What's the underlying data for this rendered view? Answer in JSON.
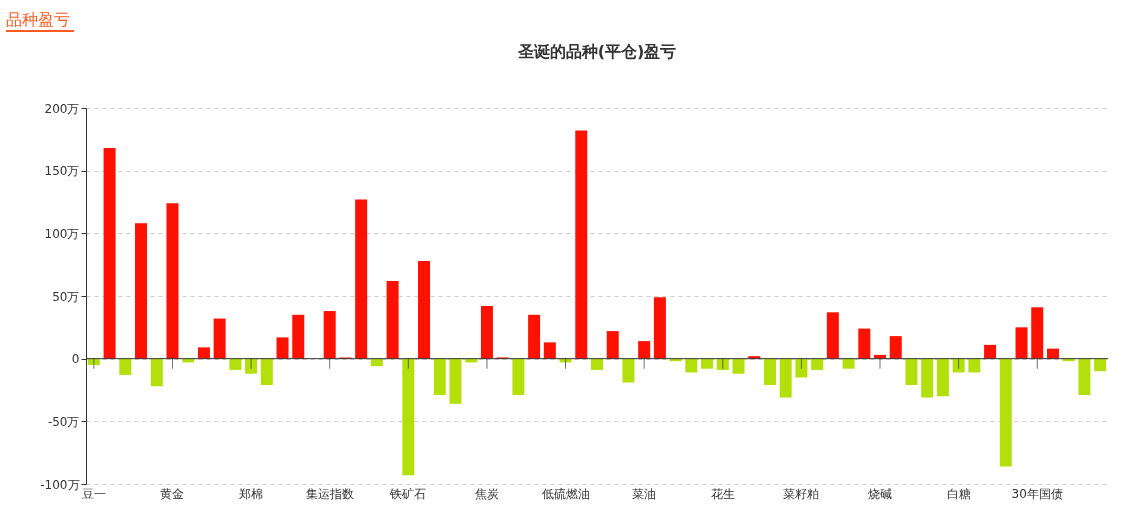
{
  "chart_data": {
    "type": "bar",
    "title": "圣诞的品种(平仓)盈亏",
    "annotations": [
      "品种盈亏"
    ],
    "categories": [
      "豆一",
      null,
      null,
      null,
      null,
      "黄金",
      null,
      null,
      null,
      null,
      "郑棉",
      null,
      null,
      null,
      null,
      "集运指数",
      null,
      null,
      null,
      null,
      "铁矿石",
      null,
      null,
      null,
      null,
      "焦炭",
      null,
      null,
      null,
      null,
      "低硫燃油",
      null,
      null,
      null,
      null,
      "菜油",
      null,
      null,
      null,
      null,
      "花生",
      null,
      null,
      null,
      null,
      "菜籽粕",
      null,
      null,
      null,
      null,
      "烧碱",
      null,
      null,
      null,
      null,
      "白糖",
      null,
      null,
      null,
      null,
      "30年国债",
      null,
      null,
      null,
      null
    ],
    "values": [
      -5,
      168,
      -13,
      108,
      -22,
      124,
      -3,
      9,
      32,
      -9,
      -12,
      -21,
      17,
      35,
      0,
      38,
      1,
      127,
      -6,
      62,
      -93,
      78,
      -29,
      -36,
      -3,
      42,
      1,
      -29,
      35,
      13,
      -3,
      182,
      -9,
      22,
      -19,
      14,
      49,
      -2,
      -11,
      -8,
      -9,
      -12,
      2,
      -21,
      -31,
      -15,
      -9,
      37,
      -8,
      24,
      3,
      18,
      -21,
      -31,
      -30,
      -11,
      -11,
      11,
      -86,
      25,
      41,
      8,
      -2,
      -29,
      -10
    ],
    "colors": [
      "#b3e00b",
      "#ff1100",
      "#b3e00b",
      "#ff1100",
      "#b3e00b",
      "#ff1100",
      "#b3e00b",
      "#ff1100",
      "#ff1100",
      "#b3e00b",
      "#b3e00b",
      "#b3e00b",
      "#ff1100",
      "#ff1100",
      "#ff1100",
      "#ff1100",
      "#ff1100",
      "#ff1100",
      "#b3e00b",
      "#ff1100",
      "#b3e00b",
      "#ff1100",
      "#b3e00b",
      "#b3e00b",
      "#b3e00b",
      "#ff1100",
      "#ff1100",
      "#b3e00b",
      "#ff1100",
      "#ff1100",
      "#b3e00b",
      "#ff1100",
      "#b3e00b",
      "#ff1100",
      "#b3e00b",
      "#ff1100",
      "#ff1100",
      "#b3e00b",
      "#b3e00b",
      "#b3e00b",
      "#b3e00b",
      "#b3e00b",
      "#ff1100",
      "#b3e00b",
      "#b3e00b",
      "#b3e00b",
      "#b3e00b",
      "#ff1100",
      "#b3e00b",
      "#ff1100",
      "#ff1100",
      "#ff1100",
      "#b3e00b",
      "#b3e00b",
      "#b3e00b",
      "#b3e00b",
      "#b3e00b",
      "#ff1100",
      "#b3e00b",
      "#ff1100",
      "#ff1100",
      "#ff1100",
      "#b3e00b",
      "#b3e00b",
      "#b3e00b"
    ],
    "ylim": [
      -100,
      200
    ],
    "yticks": [
      {
        "value": -100,
        "label": "-100万"
      },
      {
        "value": -50,
        "label": "-50万"
      },
      {
        "value": 0,
        "label": "0"
      },
      {
        "value": 50,
        "label": "50万"
      },
      {
        "value": 100,
        "label": "100万"
      },
      {
        "value": 150,
        "label": "150万"
      },
      {
        "value": 200,
        "label": "200万"
      }
    ],
    "grid": "y"
  }
}
